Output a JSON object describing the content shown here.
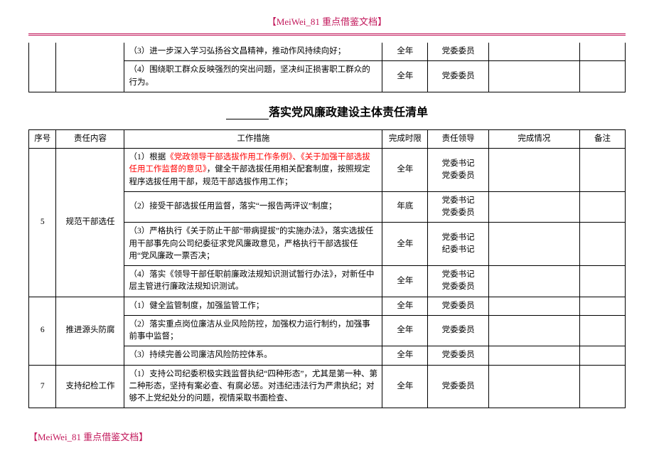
{
  "header": "【MeiWei_81 重点借鉴文档】",
  "footer": "【MeiWei_81 重点借鉴文档】",
  "topRows": [
    {
      "measure": "（3）进一步深入学习弘扬谷文昌精神，推动作风持续向好；",
      "time": "全年",
      "leader": "党委委员"
    },
    {
      "measure": "（4）围绕职工群众反映强烈的突出问题，坚决纠正损害职工群众的行为。",
      "time": "全年",
      "leader": "党委委员"
    }
  ],
  "title": "落实党风廉政建设主体责任清单",
  "columns": {
    "seq": "序号",
    "resp": "责任内容",
    "measure": "工作措施",
    "time": "完成时限",
    "leader": "责任领导",
    "status": "完成情况",
    "note": "备注"
  },
  "rows": [
    {
      "seq": "5",
      "resp": "规范干部选任",
      "items": [
        {
          "measure_pre": "（1）根据",
          "measure_red": "《党政领导干部选拔作用工作条例》、《关于加强干部选拔任用工作监督的意见》",
          "measure_post": "，健全干部选拔任用相关配套制度，按照规定程序选拔任用干部，规范干部选拔作用工作；",
          "time": "全年",
          "leader": "党委书记\n党委委员"
        },
        {
          "measure": "（2）接受干部选拔任用监督，落实“一报告两评议”制度；",
          "time": "年底",
          "leader": "党委书记\n党委委员"
        },
        {
          "measure": "（3）严格执行《关于防止干部“带病提拔”的实施办法》，落实选拔任用干部事先向公司纪委征求党风廉政意见，严格执行干部选拔任用“党风廉政一票否决；",
          "time": "全年",
          "leader": "党委书记\n纪委书记"
        },
        {
          "measure": "（4）落实《领导干部任职前廉政法规知识测试暂行办法》，对新任中层主管进行廉政法规知识测试。",
          "time": "全年",
          "leader": "党委书记\n党委委员"
        }
      ]
    },
    {
      "seq": "6",
      "resp": "推进源头防腐",
      "items": [
        {
          "measure": "（1）健全监管制度，加强监管工作；",
          "time": "全年",
          "leader": "党委委员"
        },
        {
          "measure": "（2）落实重点岗位廉洁从业风险防控，加强权力运行制约，加强事前事中监督；",
          "time": "全年",
          "leader": "党委委员"
        },
        {
          "measure": "（3）持续完善公司廉洁风险防控体系。",
          "time": "全年",
          "leader": "党委委员"
        }
      ]
    },
    {
      "seq": "7",
      "resp": "支持纪检工作",
      "items": [
        {
          "measure": "（1）支持公司纪委积极实践监督执纪“四种形态”，尤其是第一种、第二种形态，坚持有案必查、有腐必惩。对违纪违法行为严肃执纪；对够不上党纪处分的问题，视情采取书面检查、",
          "time": "全年",
          "leader": "党委委员"
        }
      ]
    }
  ]
}
